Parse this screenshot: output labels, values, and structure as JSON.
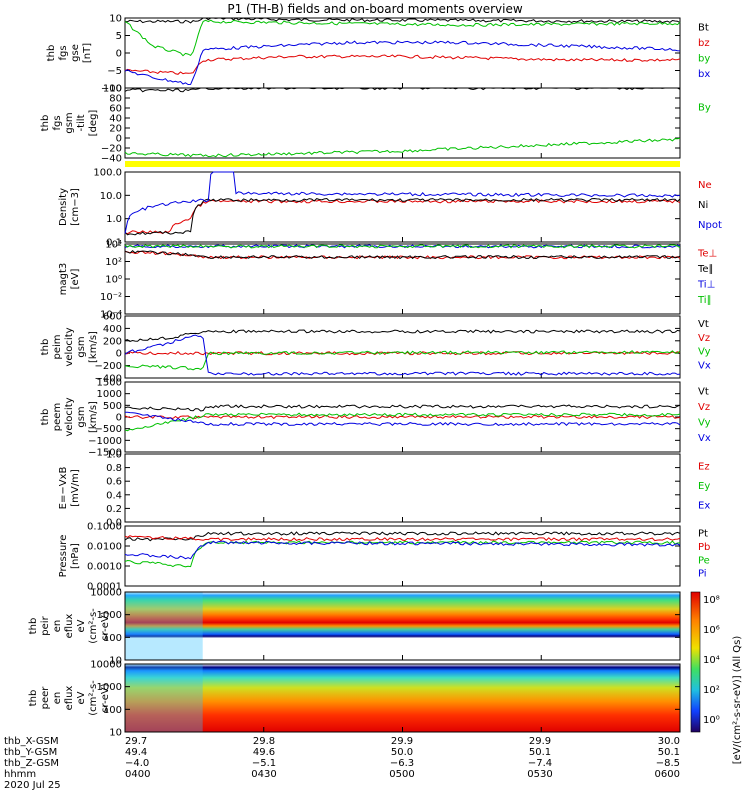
{
  "title": "P1  (TH-B) fields and on-board moments overview",
  "colors": {
    "black": "#000000",
    "red": "#e00000",
    "green": "#00c000",
    "blue": "#0000e0",
    "yellow": "#ffff00"
  },
  "chart_data": [
    {
      "type": "line",
      "id": "fgs_gse",
      "ylabel": [
        "thb",
        "fgs",
        "gse",
        "[nT]"
      ],
      "ylim": [
        -10,
        10
      ],
      "yticks": [
        "10",
        "5",
        "0",
        "−5",
        "−10"
      ],
      "series": [
        {
          "name": "Bt",
          "color": "black",
          "levels": [
            [
              0,
              9
            ],
            [
              0.13,
              9
            ],
            [
              0.14,
              10
            ],
            [
              0.3,
              9.5
            ],
            [
              1,
              9
            ]
          ]
        },
        {
          "name": "bz",
          "color": "red",
          "levels": [
            [
              0,
              -5
            ],
            [
              0.12,
              -6
            ],
            [
              0.14,
              -2
            ],
            [
              0.3,
              -1
            ],
            [
              0.5,
              -1
            ],
            [
              0.8,
              -2
            ],
            [
              1,
              -2
            ]
          ]
        },
        {
          "name": "by",
          "color": "green",
          "levels": [
            [
              0,
              9
            ],
            [
              0.05,
              2
            ],
            [
              0.12,
              -1
            ],
            [
              0.14,
              9
            ],
            [
              0.6,
              8
            ],
            [
              1,
              8.5
            ]
          ]
        },
        {
          "name": "bx",
          "color": "blue",
          "levels": [
            [
              0,
              -5
            ],
            [
              0.05,
              -7
            ],
            [
              0.12,
              -9
            ],
            [
              0.14,
              1
            ],
            [
              0.4,
              3
            ],
            [
              0.6,
              3
            ],
            [
              1,
              1
            ]
          ]
        }
      ]
    },
    {
      "type": "line",
      "id": "fgs_gsm",
      "ylabel": [
        "thb",
        "fgs",
        "gsm",
        "-tilt",
        "[deg]"
      ],
      "ylim": [
        -50,
        100
      ],
      "yticks": [
        "100",
        "80",
        "60",
        "40",
        "20",
        "0",
        "−20",
        "−40"
      ],
      "series": [
        {
          "name": "By",
          "color": "green",
          "levels": [
            [
              0,
              -40
            ],
            [
              0.14,
              -45
            ],
            [
              0.5,
              -35
            ],
            [
              1,
              -10
            ]
          ]
        },
        {
          "name": "",
          "color": "black",
          "levels": [
            [
              0,
              95
            ],
            [
              0.13,
              95
            ],
            [
              0.14,
              100
            ],
            [
              1,
              100
            ]
          ]
        }
      ]
    },
    {
      "type": "line",
      "id": "density",
      "ylabel": [
        "Density",
        "[cm−3]"
      ],
      "log": true,
      "ylim": [
        0.01,
        1000
      ],
      "yticks": [
        "100.0",
        "10.0",
        "1.0",
        "0.1"
      ],
      "series": [
        {
          "name": "Ne",
          "color": "red",
          "levels": [
            [
              0,
              0.05
            ],
            [
              0.08,
              0.05
            ],
            [
              0.12,
              0.5
            ],
            [
              0.15,
              8
            ],
            [
              0.3,
              8
            ],
            [
              1,
              8
            ]
          ]
        },
        {
          "name": "Ni",
          "color": "black",
          "levels": [
            [
              0,
              0.04
            ],
            [
              0.12,
              0.05
            ],
            [
              0.15,
              10
            ],
            [
              1,
              10
            ]
          ]
        },
        {
          "name": "Npot",
          "color": "blue",
          "levels": [
            [
              0,
              0.05
            ],
            [
              0.15,
              10
            ],
            [
              0.18,
              5000
            ],
            [
              0.2,
              30
            ],
            [
              1,
              20
            ]
          ]
        }
      ]
    },
    {
      "type": "line",
      "id": "magt3",
      "ylabel": [
        "magt3",
        "[eV]"
      ],
      "log": true,
      "ylim": [
        1e-05,
        10000
      ],
      "yticks": [
        "10⁴",
        "10²",
        "10⁰",
        "10⁻²",
        "10⁻⁴"
      ],
      "series": [
        {
          "name": "Te⊥",
          "color": "red",
          "levels": [
            [
              0,
              1000
            ],
            [
              0.15,
              200
            ],
            [
              1,
              200
            ]
          ]
        },
        {
          "name": "Te∥",
          "color": "black",
          "levels": [
            [
              0,
              1100
            ],
            [
              0.15,
              210
            ],
            [
              1,
              210
            ]
          ]
        },
        {
          "name": "Ti⊥",
          "color": "blue",
          "levels": [
            [
              0,
              5000
            ],
            [
              1,
              5000
            ]
          ]
        },
        {
          "name": "Ti∥",
          "color": "green",
          "levels": [
            [
              0,
              5000
            ],
            [
              1,
              5000
            ]
          ]
        }
      ]
    },
    {
      "type": "line",
      "id": "peim",
      "ylabel": [
        "thb",
        "peim",
        "velocity",
        "gsm",
        "[km/s]"
      ],
      "ylim": [
        -400,
        600
      ],
      "yticks": [
        "600",
        "400",
        "200",
        "0",
        "−200",
        "−400"
      ],
      "series": [
        {
          "name": "Vt",
          "color": "black",
          "levels": [
            [
              0,
              200
            ],
            [
              0.08,
              250
            ],
            [
              0.14,
              350
            ],
            [
              1,
              350
            ]
          ]
        },
        {
          "name": "Vz",
          "color": "red",
          "levels": [
            [
              0,
              0
            ],
            [
              1,
              0
            ]
          ]
        },
        {
          "name": "Vy",
          "color": "green",
          "levels": [
            [
              0,
              -200
            ],
            [
              0.14,
              -250
            ],
            [
              0.15,
              0
            ],
            [
              1,
              20
            ]
          ]
        },
        {
          "name": "Vx",
          "color": "blue",
          "levels": [
            [
              0,
              0
            ],
            [
              0.14,
              300
            ],
            [
              0.15,
              -330
            ],
            [
              1,
              -330
            ]
          ]
        }
      ]
    },
    {
      "type": "line",
      "id": "peem",
      "ylabel": [
        "thb",
        "peem",
        "velocity",
        "gsm",
        "[km/s]"
      ],
      "ylim": [
        -1500,
        1500
      ],
      "yticks": [
        "1500",
        "1000",
        "500",
        "0",
        "−500",
        "−1000",
        "−1500"
      ],
      "series": [
        {
          "name": "Vt",
          "color": "black",
          "levels": [
            [
              0,
              400
            ],
            [
              0.14,
              300
            ],
            [
              0.15,
              450
            ],
            [
              1,
              450
            ]
          ]
        },
        {
          "name": "Vz",
          "color": "red",
          "levels": [
            [
              0,
              0
            ],
            [
              1,
              0
            ]
          ]
        },
        {
          "name": "Vy",
          "color": "green",
          "levels": [
            [
              0,
              -600
            ],
            [
              0.15,
              100
            ],
            [
              1,
              100
            ]
          ]
        },
        {
          "name": "Vx",
          "color": "blue",
          "levels": [
            [
              0,
              200
            ],
            [
              0.15,
              -300
            ],
            [
              1,
              -300
            ]
          ]
        }
      ]
    },
    {
      "type": "line",
      "id": "efield",
      "ylabel": [
        "E=−VxB",
        "[mV/m]"
      ],
      "ylim": [
        0,
        1
      ],
      "yticks": [
        "1.0",
        "0.8",
        "0.6",
        "0.4",
        "0.2",
        "0.0"
      ],
      "series": [
        {
          "name": "Ez",
          "color": "red",
          "levels": []
        },
        {
          "name": "Ey",
          "color": "green",
          "levels": []
        },
        {
          "name": "Ex",
          "color": "blue",
          "levels": []
        }
      ]
    },
    {
      "type": "line",
      "id": "pressure",
      "ylabel": [
        "Pressure",
        "[nPa]"
      ],
      "log": true,
      "ylim": [
        0.0001,
        0.15
      ],
      "yticks": [
        "0.1000",
        "0.0100",
        "0.0010",
        "0.0001"
      ],
      "series": [
        {
          "name": "Pt",
          "color": "black",
          "levels": [
            [
              0,
              0.03
            ],
            [
              0.12,
              0.03
            ],
            [
              0.15,
              0.06
            ],
            [
              1,
              0.06
            ]
          ]
        },
        {
          "name": "Pb",
          "color": "red",
          "levels": [
            [
              0,
              0.04
            ],
            [
              0.15,
              0.03
            ],
            [
              1,
              0.03
            ]
          ]
        },
        {
          "name": "Pe",
          "color": "green",
          "levels": [
            [
              0,
              0.002
            ],
            [
              0.12,
              0.001
            ],
            [
              0.15,
              0.02
            ],
            [
              1,
              0.02
            ]
          ]
        },
        {
          "name": "Pi",
          "color": "blue",
          "levels": [
            [
              0,
              0.005
            ],
            [
              0.12,
              0.003
            ],
            [
              0.15,
              0.02
            ],
            [
              1,
              0.015
            ]
          ]
        }
      ]
    },
    {
      "type": "heatmap",
      "id": "peir",
      "ylabel": [
        "thb",
        "peir",
        "en",
        "eflux",
        "eV",
        "(cm²-s-",
        "sr-eV)"
      ],
      "log": true,
      "ylim": [
        5,
        10000
      ],
      "yticks": [
        "10000",
        "1000",
        "100",
        "10"
      ]
    },
    {
      "type": "heatmap",
      "id": "peer",
      "ylabel": [
        "thb",
        "peer",
        "en",
        "eflux",
        "eV",
        "(cm²-s-",
        "sr-eV)"
      ],
      "log": true,
      "ylim": [
        5,
        10000
      ],
      "yticks": [
        "10000",
        "1000",
        "100",
        "10"
      ]
    }
  ],
  "colorbar": {
    "ticks": [
      "10⁸",
      "10⁶",
      "10⁴",
      "10²",
      "10⁰"
    ],
    "label": "[eV/(cm²-s-sr-eV)] (All Qs)"
  },
  "footer": {
    "rows": [
      {
        "name": "thb_X-GSM",
        "values": [
          "29.7",
          "29.8",
          "29.9",
          "29.9",
          "30.0"
        ]
      },
      {
        "name": "thb_Y-GSM",
        "values": [
          "49.4",
          "49.6",
          "50.0",
          "50.1",
          "50.1"
        ]
      },
      {
        "name": "thb_Z-GSM",
        "values": [
          "−4.0",
          "−5.1",
          "−6.3",
          "−7.4",
          "−8.5"
        ]
      },
      {
        "name": "hhmm",
        "values": [
          "0400",
          "0430",
          "0500",
          "0530",
          "0600"
        ]
      }
    ],
    "date": "2020 Jul 25"
  }
}
